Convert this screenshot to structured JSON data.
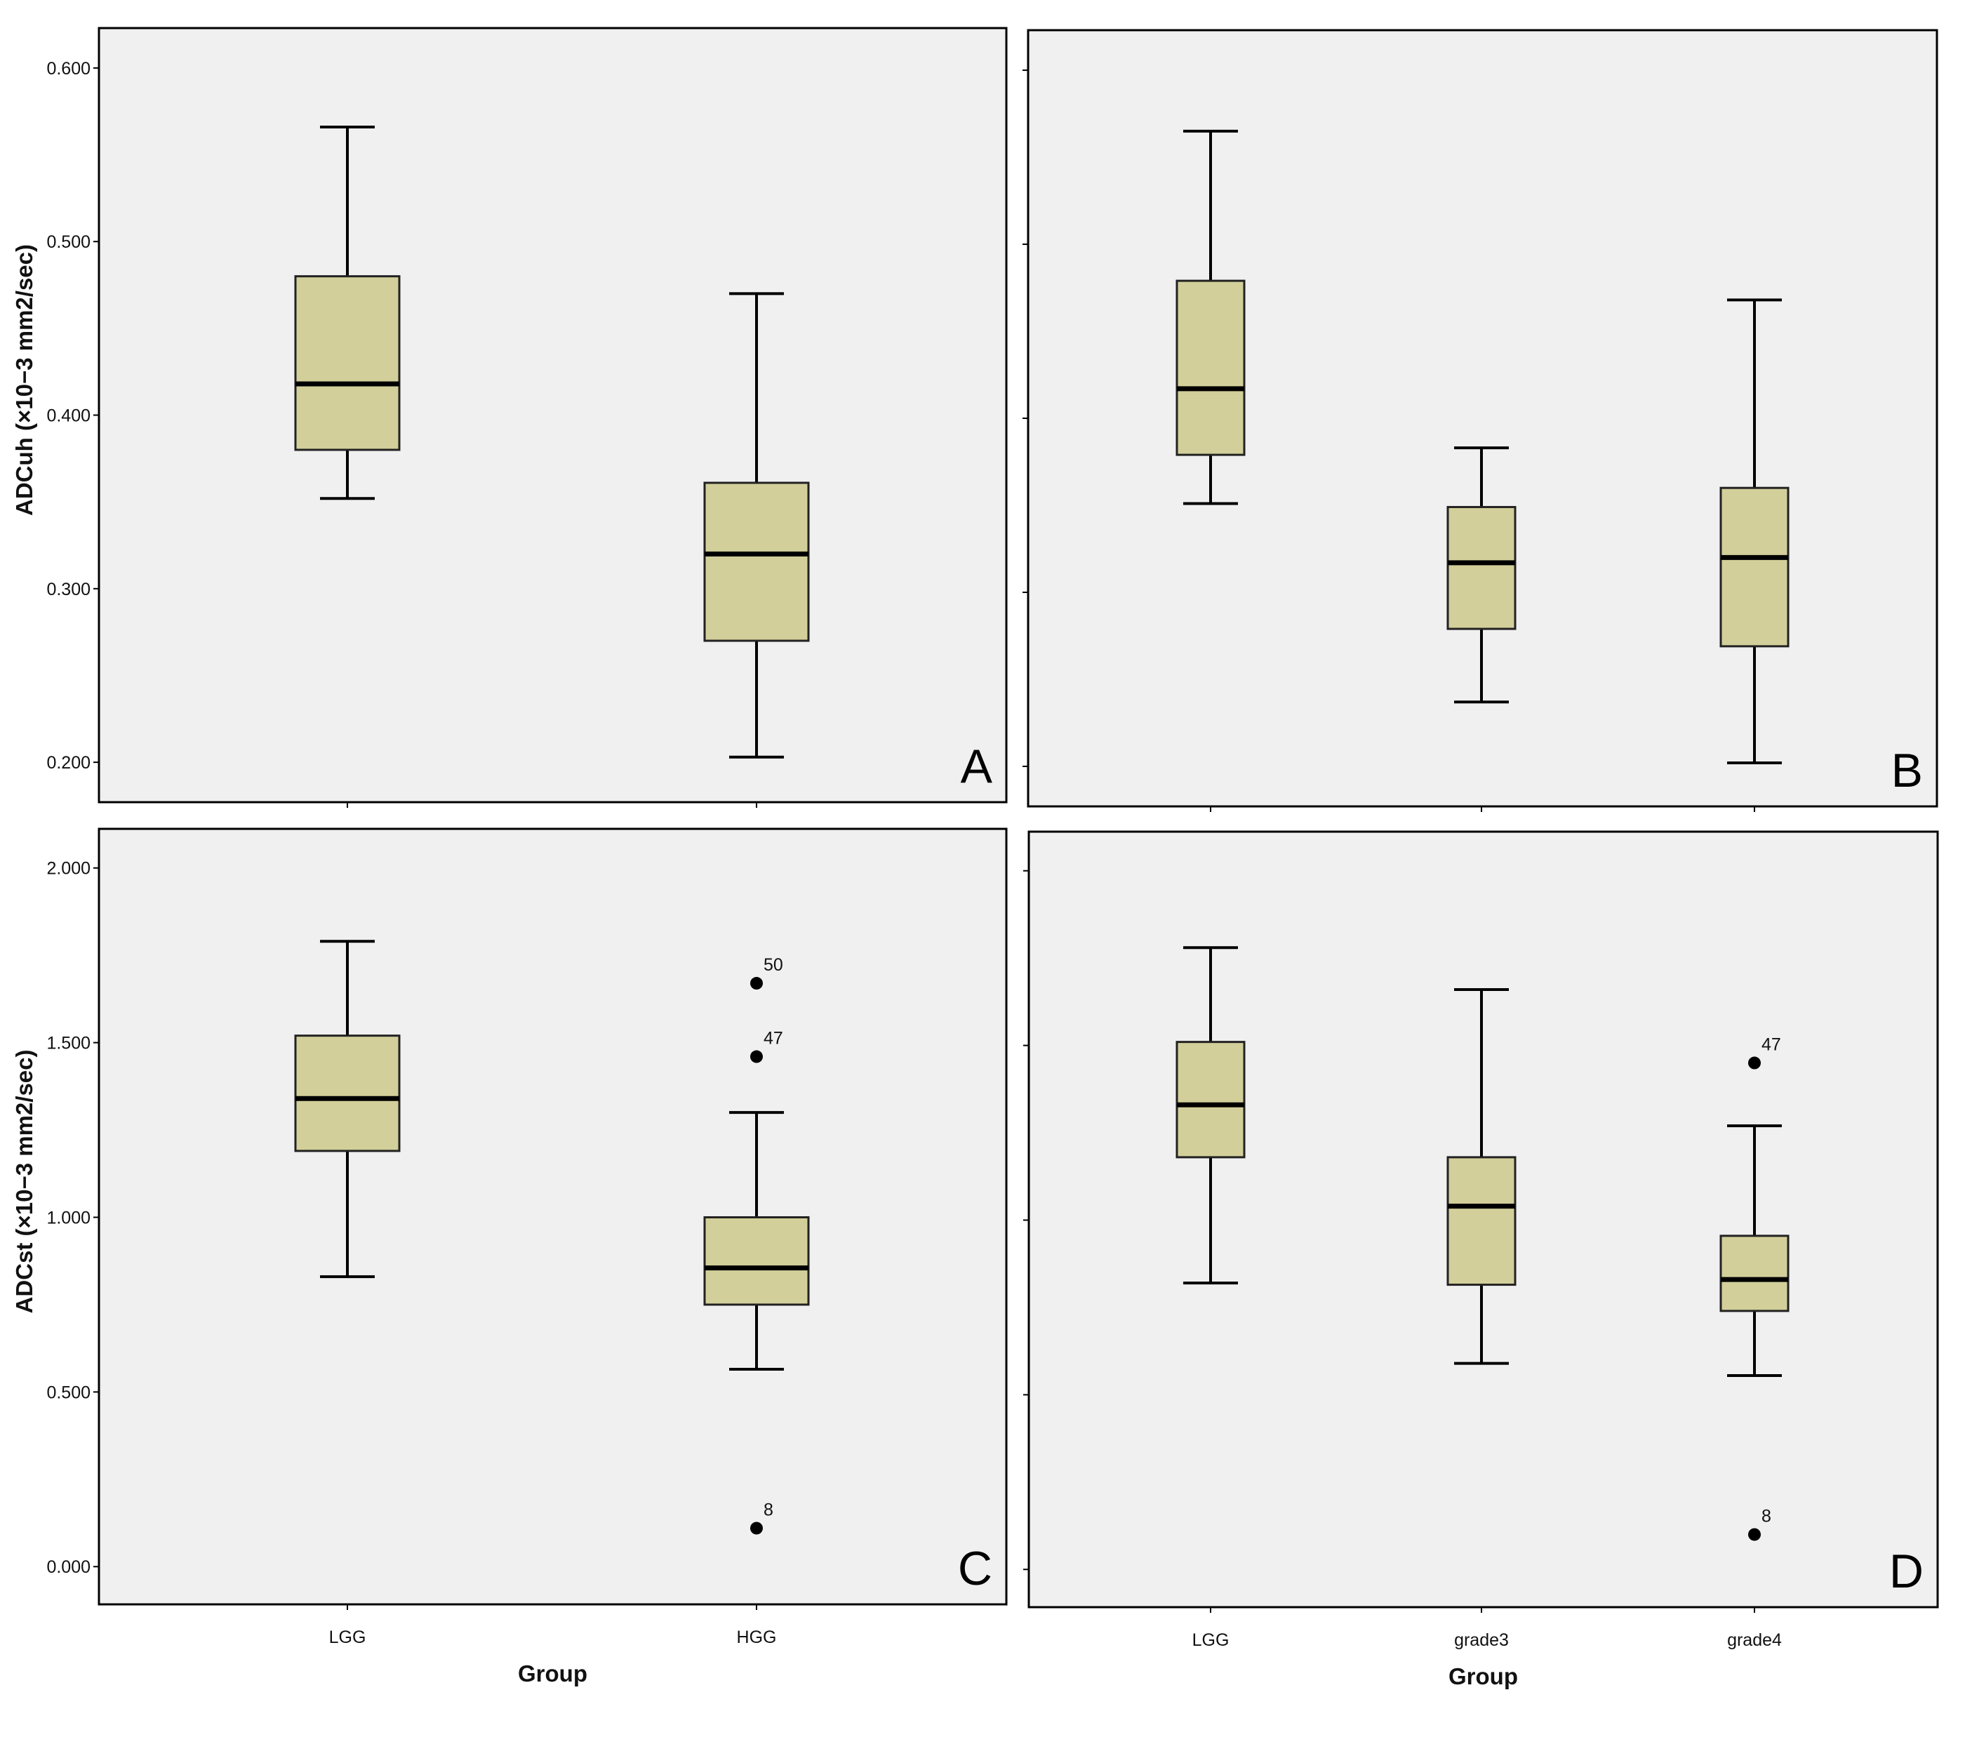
{
  "colors": {
    "box_fill": "#d3cf9a",
    "panel_bg": "#f0f0f0",
    "line": "#000000"
  },
  "chart_data": [
    {
      "type": "box",
      "panel": "A",
      "ylabel": "ADCuh (×10−3 mm2/sec)",
      "xlabel": "",
      "yticks": [
        "0.200",
        "0.300",
        "0.400",
        "0.500",
        "0.600"
      ],
      "ytick_values": [
        0.2,
        0.3,
        0.4,
        0.5,
        0.6
      ],
      "ylim": [
        0.177,
        0.623
      ],
      "categories": [
        "LGG",
        "HGG"
      ],
      "show_category_labels": false,
      "boxes": [
        {
          "category": "LGG",
          "min": 0.352,
          "q1": 0.38,
          "median": 0.418,
          "q3": 0.48,
          "max": 0.566,
          "outliers": []
        },
        {
          "category": "HGG",
          "min": 0.203,
          "q1": 0.27,
          "median": 0.32,
          "q3": 0.361,
          "max": 0.47,
          "outliers": []
        }
      ]
    },
    {
      "type": "box",
      "panel": "B",
      "ylabel": "",
      "xlabel": "",
      "ytick_values": [
        0.2,
        0.3,
        0.4,
        0.5,
        0.6
      ],
      "ylim": [
        0.177,
        0.623
      ],
      "categories": [
        "LGG",
        "grade3",
        "grade4"
      ],
      "show_category_labels": false,
      "boxes": [
        {
          "category": "LGG",
          "min": 0.351,
          "q1": 0.379,
          "median": 0.417,
          "q3": 0.479,
          "max": 0.565,
          "outliers": []
        },
        {
          "category": "grade3",
          "min": 0.237,
          "q1": 0.279,
          "median": 0.317,
          "q3": 0.349,
          "max": 0.383,
          "outliers": []
        },
        {
          "category": "grade4",
          "min": 0.202,
          "q1": 0.269,
          "median": 0.32,
          "q3": 0.36,
          "max": 0.468,
          "outliers": []
        }
      ]
    },
    {
      "type": "box",
      "panel": "C",
      "ylabel": "ADCst (×10−3 mm2/sec)",
      "xlabel": "Group",
      "yticks": [
        "0.000",
        "0.500",
        "1.000",
        "1.500",
        "2.000"
      ],
      "ytick_values": [
        0,
        0.5,
        1.0,
        1.5,
        2.0
      ],
      "ylim": [
        -0.108,
        2.112
      ],
      "categories": [
        "LGG",
        "HGG"
      ],
      "show_category_labels": true,
      "boxes": [
        {
          "category": "LGG",
          "min": 0.83,
          "q1": 1.19,
          "median": 1.34,
          "q3": 1.52,
          "max": 1.79,
          "outliers": []
        },
        {
          "category": "HGG",
          "min": 0.565,
          "q1": 0.75,
          "median": 0.855,
          "q3": 1.0,
          "max": 1.3,
          "outliers": [
            {
              "label": "50",
              "value": 1.67
            },
            {
              "label": "47",
              "value": 1.46
            },
            {
              "label": "8",
              "value": 0.11
            }
          ]
        }
      ]
    },
    {
      "type": "box",
      "panel": "D",
      "ylabel": "",
      "xlabel": "Group",
      "ytick_values": [
        0,
        0.5,
        1.0,
        1.5,
        2.0
      ],
      "ylim": [
        -0.108,
        2.112
      ],
      "categories": [
        "LGG",
        "grade3",
        "grade4"
      ],
      "show_category_labels": true,
      "boxes": [
        {
          "category": "LGG",
          "min": 0.82,
          "q1": 1.18,
          "median": 1.33,
          "q3": 1.51,
          "max": 1.78,
          "outliers": []
        },
        {
          "category": "grade3",
          "min": 0.59,
          "q1": 0.815,
          "median": 1.04,
          "q3": 1.18,
          "max": 1.66,
          "outliers": []
        },
        {
          "category": "grade4",
          "min": 0.555,
          "q1": 0.74,
          "median": 0.83,
          "q3": 0.955,
          "max": 1.27,
          "outliers": [
            {
              "label": "47",
              "value": 1.45
            },
            {
              "label": "8",
              "value": 0.1
            }
          ]
        }
      ]
    }
  ]
}
